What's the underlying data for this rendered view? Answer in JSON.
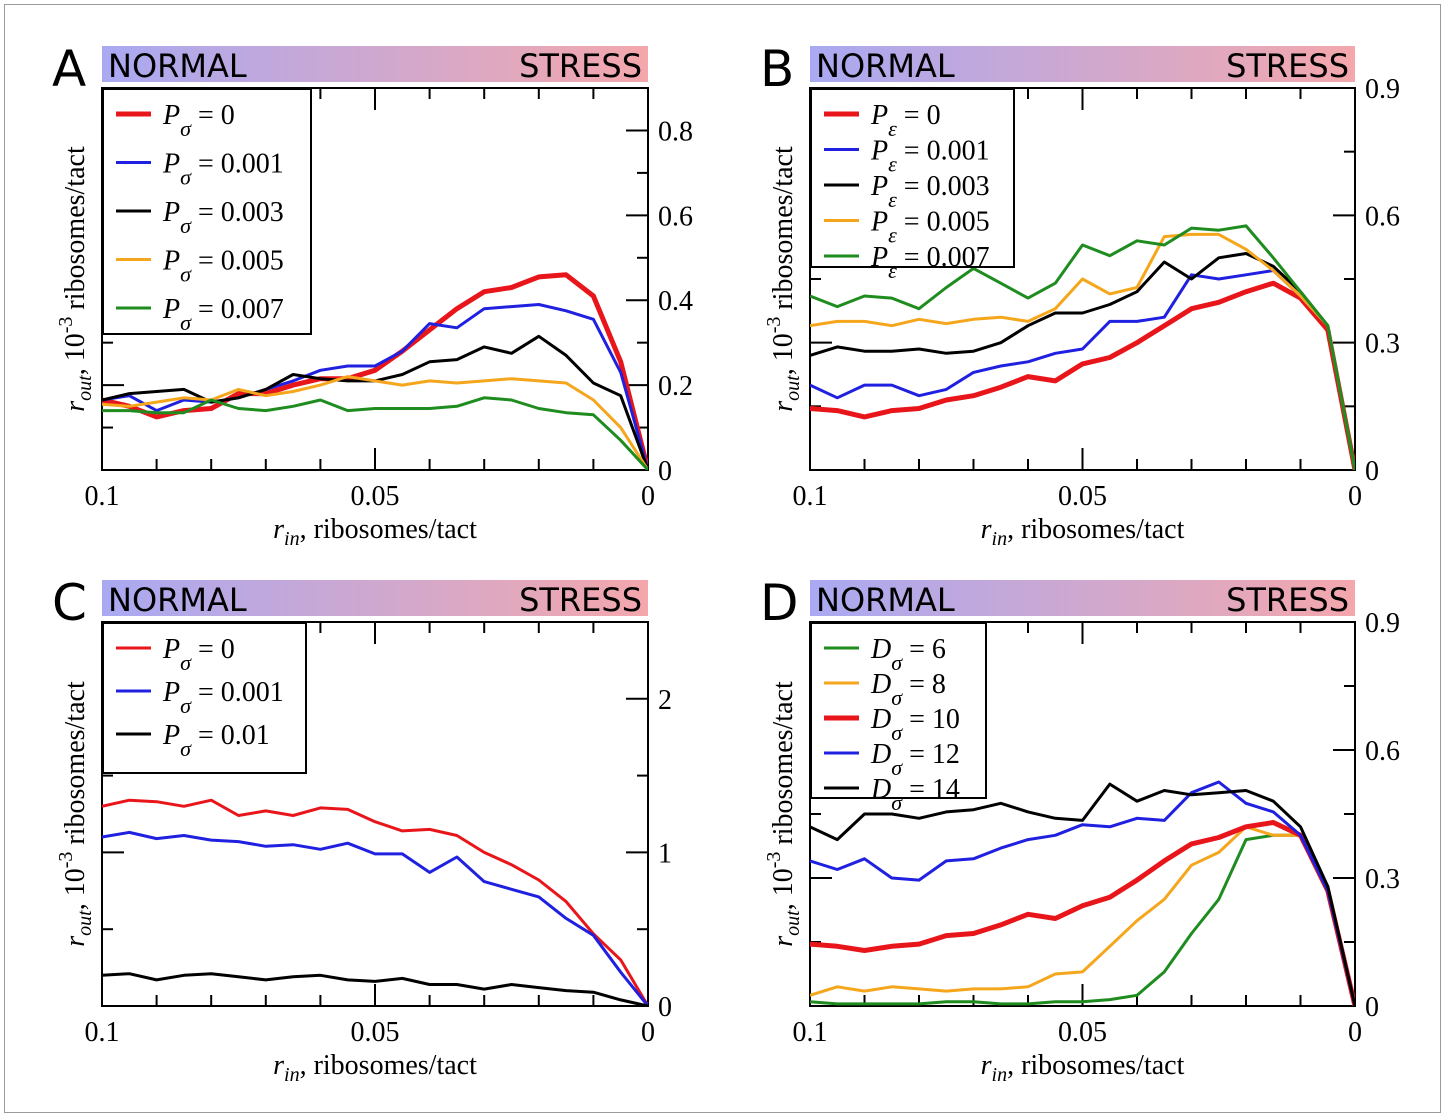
{
  "figure": {
    "condition_left": "NORMAL",
    "condition_right": "STRESS",
    "gradient_colors": [
      "#a9a9f2",
      "#f4a7ac"
    ],
    "x_axis_label_main": "r",
    "x_axis_label_sub": "in",
    "x_axis_label_rest": ", ribosomes/tact",
    "y_axis_label_main": "r",
    "y_axis_label_sub": "out",
    "y_axis_label_mid": ", 10",
    "y_axis_label_sup": "-3",
    "y_axis_label_rest": " ribosomes/tact"
  },
  "chart_data": [
    {
      "panel": "A",
      "type": "line",
      "xlabel": "r_in, ribosomes/tact",
      "ylabel": "r_out, 10^-3 ribosomes/tact",
      "x_reversed": true,
      "xlim": [
        0.1,
        0
      ],
      "ylim": [
        0,
        0.9
      ],
      "xticks": [
        "0.1",
        "0.05",
        "0"
      ],
      "yticks": [
        "0",
        "0.2",
        "0.4",
        "0.6",
        "0.8"
      ],
      "legend_position": "top-left",
      "x": [
        0.1,
        0.095,
        0.09,
        0.085,
        0.08,
        0.075,
        0.07,
        0.065,
        0.06,
        0.055,
        0.05,
        0.045,
        0.04,
        0.035,
        0.03,
        0.025,
        0.02,
        0.015,
        0.01,
        0.005,
        0
      ],
      "series": [
        {
          "name": "P_σ = 0",
          "param": "P",
          "sub": "σ",
          "value_text": " = 0",
          "color": "#e8161b",
          "width": 5,
          "values": [
            0.165,
            0.15,
            0.125,
            0.14,
            0.145,
            0.18,
            0.18,
            0.2,
            0.215,
            0.215,
            0.235,
            0.28,
            0.33,
            0.38,
            0.42,
            0.43,
            0.455,
            0.46,
            0.41,
            0.255,
            0
          ]
        },
        {
          "name": "P_σ = 0.001",
          "param": "P",
          "sub": "σ",
          "value_text": " = 0.001",
          "color": "#2020e0",
          "width": 3,
          "values": [
            0.165,
            0.175,
            0.14,
            0.165,
            0.16,
            0.17,
            0.19,
            0.21,
            0.235,
            0.245,
            0.245,
            0.28,
            0.345,
            0.335,
            0.38,
            0.385,
            0.39,
            0.375,
            0.355,
            0.23,
            0
          ]
        },
        {
          "name": "P_σ = 0.003",
          "param": "P",
          "sub": "σ",
          "value_text": " = 0.003",
          "color": "#000000",
          "width": 3,
          "values": [
            0.165,
            0.18,
            0.185,
            0.19,
            0.16,
            0.17,
            0.19,
            0.225,
            0.215,
            0.21,
            0.21,
            0.225,
            0.255,
            0.26,
            0.29,
            0.275,
            0.315,
            0.27,
            0.205,
            0.175,
            0
          ]
        },
        {
          "name": "P_σ = 0.005",
          "param": "P",
          "sub": "σ",
          "value_text": " = 0.005",
          "color": "#f5a61c",
          "width": 3,
          "values": [
            0.155,
            0.15,
            0.16,
            0.17,
            0.165,
            0.19,
            0.175,
            0.185,
            0.2,
            0.22,
            0.21,
            0.2,
            0.21,
            0.205,
            0.21,
            0.215,
            0.21,
            0.205,
            0.165,
            0.1,
            0
          ]
        },
        {
          "name": "P_σ = 0.007",
          "param": "P",
          "sub": "σ",
          "value_text": " = 0.007",
          "color": "#1e8c1e",
          "width": 3,
          "values": [
            0.14,
            0.14,
            0.135,
            0.135,
            0.165,
            0.145,
            0.14,
            0.15,
            0.165,
            0.14,
            0.145,
            0.145,
            0.145,
            0.15,
            0.17,
            0.165,
            0.145,
            0.135,
            0.13,
            0.07,
            0
          ]
        }
      ]
    },
    {
      "panel": "B",
      "type": "line",
      "xlabel": "r_in, ribosomes/tact",
      "ylabel": "r_out, 10^-3 ribosomes/tact",
      "x_reversed": true,
      "xlim": [
        0.1,
        0
      ],
      "ylim": [
        0,
        0.9
      ],
      "xticks": [
        "0.1",
        "0.05",
        "0"
      ],
      "yticks": [
        "0",
        "0.3",
        "0.6",
        "0.9"
      ],
      "legend_position": "top-left",
      "x": [
        0.1,
        0.095,
        0.09,
        0.085,
        0.08,
        0.075,
        0.07,
        0.065,
        0.06,
        0.055,
        0.05,
        0.045,
        0.04,
        0.035,
        0.03,
        0.025,
        0.02,
        0.015,
        0.01,
        0.005,
        0
      ],
      "series": [
        {
          "name": "P_ε = 0",
          "param": "P",
          "sub": "ε",
          "value_text": " = 0",
          "color": "#e8161b",
          "width": 5,
          "values": [
            0.145,
            0.14,
            0.125,
            0.14,
            0.145,
            0.165,
            0.175,
            0.195,
            0.22,
            0.21,
            0.25,
            0.265,
            0.3,
            0.34,
            0.38,
            0.395,
            0.42,
            0.44,
            0.405,
            0.33,
            0
          ]
        },
        {
          "name": "P_ε = 0.001",
          "param": "P",
          "sub": "ε",
          "value_text": " = 0.001",
          "color": "#2020e0",
          "width": 3,
          "values": [
            0.2,
            0.17,
            0.2,
            0.2,
            0.175,
            0.19,
            0.23,
            0.245,
            0.255,
            0.275,
            0.285,
            0.35,
            0.35,
            0.36,
            0.46,
            0.45,
            0.46,
            0.47,
            0.41,
            0.34,
            0
          ]
        },
        {
          "name": "P_ε = 0.003",
          "param": "P",
          "sub": "ε",
          "value_text": " = 0.003",
          "color": "#000000",
          "width": 3,
          "values": [
            0.27,
            0.29,
            0.28,
            0.28,
            0.285,
            0.275,
            0.28,
            0.3,
            0.34,
            0.37,
            0.37,
            0.39,
            0.42,
            0.49,
            0.45,
            0.5,
            0.51,
            0.48,
            0.42,
            0.34,
            0
          ]
        },
        {
          "name": "P_ε = 0.005",
          "param": "P",
          "sub": "ε",
          "value_text": " = 0.005",
          "color": "#f5a61c",
          "width": 3,
          "values": [
            0.34,
            0.35,
            0.35,
            0.34,
            0.355,
            0.345,
            0.355,
            0.36,
            0.35,
            0.38,
            0.45,
            0.415,
            0.43,
            0.55,
            0.555,
            0.555,
            0.52,
            0.47,
            0.41,
            0.34,
            0
          ]
        },
        {
          "name": "P_ε = 0.007",
          "param": "P",
          "sub": "ε",
          "value_text": " = 0.007",
          "color": "#1e8c1e",
          "width": 3,
          "values": [
            0.41,
            0.385,
            0.41,
            0.405,
            0.38,
            0.43,
            0.475,
            0.44,
            0.405,
            0.44,
            0.53,
            0.505,
            0.54,
            0.53,
            0.57,
            0.565,
            0.575,
            0.5,
            0.42,
            0.34,
            0
          ]
        }
      ]
    },
    {
      "panel": "C",
      "type": "line",
      "xlabel": "r_in, ribosomes/tact",
      "ylabel": "r_out, 10^-3 ribosomes/tact",
      "x_reversed": true,
      "xlim": [
        0.1,
        0
      ],
      "ylim": [
        0,
        2.5
      ],
      "xticks": [
        "0.1",
        "0.05",
        "0"
      ],
      "yticks": [
        "0",
        "1",
        "2"
      ],
      "legend_position": "top-left",
      "x": [
        0.1,
        0.095,
        0.09,
        0.085,
        0.08,
        0.075,
        0.07,
        0.065,
        0.06,
        0.055,
        0.05,
        0.045,
        0.04,
        0.035,
        0.03,
        0.025,
        0.02,
        0.015,
        0.01,
        0.005,
        0
      ],
      "series": [
        {
          "name": "P_σ = 0",
          "param": "P",
          "sub": "σ",
          "value_text": " = 0",
          "color": "#e8161b",
          "width": 3,
          "values": [
            1.3,
            1.34,
            1.33,
            1.3,
            1.34,
            1.24,
            1.27,
            1.24,
            1.29,
            1.28,
            1.2,
            1.14,
            1.15,
            1.11,
            1.0,
            0.92,
            0.82,
            0.68,
            0.47,
            0.3,
            0
          ]
        },
        {
          "name": "P_σ = 0.001",
          "param": "P",
          "sub": "σ",
          "value_text": " = 0.001",
          "color": "#2020e0",
          "width": 3,
          "values": [
            1.1,
            1.13,
            1.09,
            1.11,
            1.08,
            1.07,
            1.04,
            1.05,
            1.02,
            1.06,
            0.99,
            0.99,
            0.87,
            0.97,
            0.81,
            0.76,
            0.71,
            0.57,
            0.46,
            0.22,
            0
          ]
        },
        {
          "name": "P_σ = 0.01",
          "param": "P",
          "sub": "σ",
          "value_text": " = 0.01",
          "color": "#000000",
          "width": 3,
          "values": [
            0.2,
            0.21,
            0.17,
            0.2,
            0.21,
            0.19,
            0.17,
            0.19,
            0.2,
            0.17,
            0.16,
            0.18,
            0.14,
            0.14,
            0.11,
            0.14,
            0.12,
            0.1,
            0.09,
            0.04,
            0
          ]
        }
      ]
    },
    {
      "panel": "D",
      "type": "line",
      "xlabel": "r_in, ribosomes/tact",
      "ylabel": "r_out, 10^-3 ribosomes/tact",
      "x_reversed": true,
      "xlim": [
        0.1,
        0
      ],
      "ylim": [
        0,
        0.9
      ],
      "xticks": [
        "0.1",
        "0.05",
        "0"
      ],
      "yticks": [
        "0",
        "0.3",
        "0.6",
        "0.9"
      ],
      "legend_position": "top-left",
      "x": [
        0.1,
        0.095,
        0.09,
        0.085,
        0.08,
        0.075,
        0.07,
        0.065,
        0.06,
        0.055,
        0.05,
        0.045,
        0.04,
        0.035,
        0.03,
        0.025,
        0.02,
        0.015,
        0.01,
        0.005,
        0
      ],
      "series": [
        {
          "name": "D_σ = 6",
          "param": "D",
          "sub": "σ",
          "value_text": " = 6",
          "color": "#1e8c1e",
          "width": 3,
          "values": [
            0.01,
            0.005,
            0.005,
            0.005,
            0.005,
            0.01,
            0.01,
            0.005,
            0.005,
            0.01,
            0.01,
            0.015,
            0.025,
            0.08,
            0.17,
            0.25,
            0.39,
            0.4,
            0.4,
            0.28,
            0
          ]
        },
        {
          "name": "D_σ = 8",
          "param": "D",
          "sub": "σ",
          "value_text": " = 8",
          "color": "#f5a61c",
          "width": 3,
          "values": [
            0.025,
            0.045,
            0.035,
            0.045,
            0.04,
            0.035,
            0.04,
            0.04,
            0.045,
            0.075,
            0.08,
            0.14,
            0.2,
            0.25,
            0.33,
            0.36,
            0.42,
            0.4,
            0.4,
            0.28,
            0
          ]
        },
        {
          "name": "D_σ = 10",
          "param": "D",
          "sub": "σ",
          "value_text": " = 10",
          "color": "#e8161b",
          "width": 5,
          "values": [
            0.145,
            0.14,
            0.13,
            0.14,
            0.145,
            0.165,
            0.17,
            0.19,
            0.215,
            0.205,
            0.235,
            0.255,
            0.295,
            0.34,
            0.38,
            0.395,
            0.42,
            0.43,
            0.4,
            0.27,
            0
          ]
        },
        {
          "name": "D_σ = 12",
          "param": "D",
          "sub": "σ",
          "value_text": " = 12",
          "color": "#2020e0",
          "width": 3,
          "values": [
            0.34,
            0.32,
            0.345,
            0.3,
            0.295,
            0.34,
            0.345,
            0.37,
            0.39,
            0.4,
            0.425,
            0.42,
            0.44,
            0.435,
            0.5,
            0.525,
            0.475,
            0.455,
            0.4,
            0.27,
            0
          ]
        },
        {
          "name": "D_σ = 14",
          "param": "D",
          "sub": "σ",
          "value_text": " = 14",
          "color": "#000000",
          "width": 3,
          "values": [
            0.42,
            0.39,
            0.45,
            0.45,
            0.44,
            0.455,
            0.46,
            0.475,
            0.455,
            0.44,
            0.435,
            0.52,
            0.48,
            0.505,
            0.495,
            0.5,
            0.505,
            0.48,
            0.42,
            0.28,
            0
          ]
        }
      ]
    }
  ]
}
